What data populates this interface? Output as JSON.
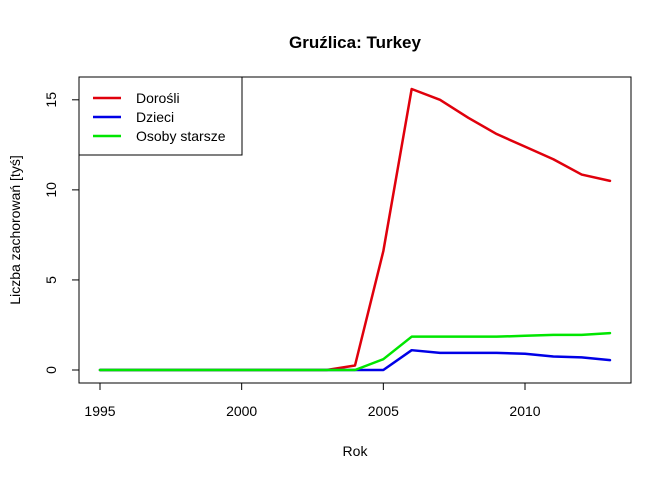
{
  "chart_data": {
    "type": "line",
    "title": "Gruźlica: Turkey",
    "xlabel": "Rok",
    "ylabel": "Liczba zachorowań [tyś]",
    "xlim": [
      1995,
      2013
    ],
    "ylim": [
      0,
      15.6
    ],
    "x_ticks": [
      1995,
      2000,
      2005,
      2010
    ],
    "y_ticks": [
      0,
      5,
      10,
      15
    ],
    "legend_position": "top-left",
    "x": [
      1995,
      1996,
      1997,
      1998,
      1999,
      2000,
      2001,
      2002,
      2003,
      2004,
      2005,
      2006,
      2007,
      2008,
      2009,
      2010,
      2011,
      2012,
      2013
    ],
    "series": [
      {
        "name": "Dorośli",
        "color": "#e0000c",
        "values": [
          0,
          0,
          0,
          0,
          0,
          0,
          0,
          0,
          0,
          0.25,
          6.6,
          15.6,
          15.0,
          14.0,
          13.1,
          12.4,
          11.7,
          10.85,
          10.5
        ]
      },
      {
        "name": "Dzieci",
        "color": "#0000e6",
        "values": [
          0,
          0,
          0,
          0,
          0,
          0,
          0,
          0,
          0,
          0,
          0,
          1.1,
          0.95,
          0.95,
          0.95,
          0.9,
          0.75,
          0.7,
          0.55
        ]
      },
      {
        "name": "Osoby starsze",
        "color": "#00e600",
        "values": [
          0,
          0,
          0,
          0,
          0,
          0,
          0,
          0,
          0,
          0,
          0.6,
          1.85,
          1.85,
          1.85,
          1.85,
          1.9,
          1.95,
          1.95,
          2.05
        ]
      }
    ]
  }
}
